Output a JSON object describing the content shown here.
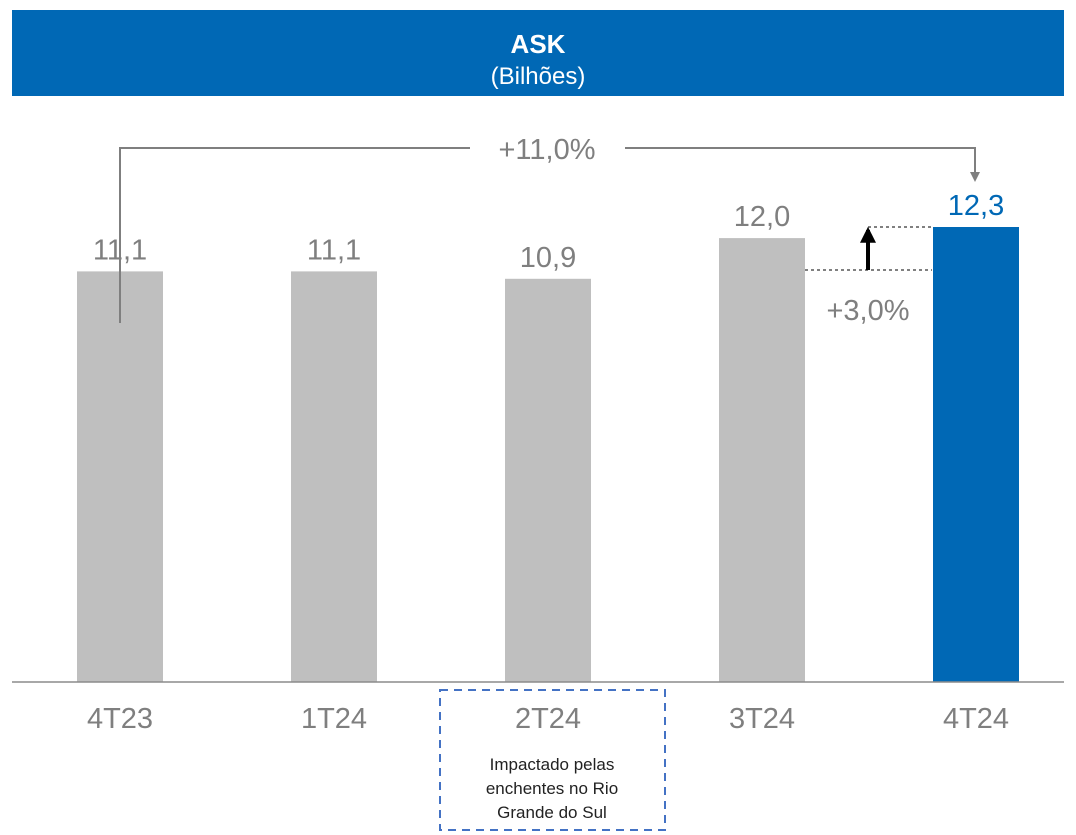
{
  "header": {
    "title": "ASK",
    "subtitle": "(Bilhões)"
  },
  "chart_data": {
    "type": "bar",
    "categories": [
      "4T23",
      "1T24",
      "2T24",
      "3T24",
      "4T24"
    ],
    "values": [
      11.1,
      11.1,
      10.9,
      12.0,
      12.3
    ],
    "value_labels": [
      "11,1",
      "11,1",
      "10,9",
      "12,0",
      "12,3"
    ],
    "highlight_index": 4,
    "ylim": [
      0,
      12.3
    ],
    "grid": false,
    "colors": {
      "default": "#bfbfbf",
      "highlight": "#0068b5",
      "label": "#7f7f7f",
      "header": "#0068b5"
    },
    "annotations": {
      "total_growth": {
        "label": "+11,0%",
        "from": "4T23",
        "to": "4T24"
      },
      "step_growth": {
        "label": "+3,0%",
        "from": "3T24",
        "to": "4T24"
      },
      "note": {
        "category": "2T24",
        "lines": [
          "Impactado pelas",
          "enchentes no Rio",
          "Grande do Sul"
        ]
      }
    }
  }
}
